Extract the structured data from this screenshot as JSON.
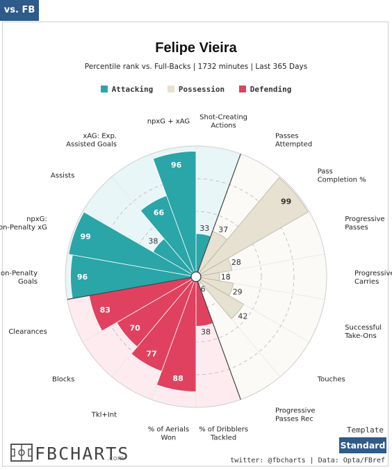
{
  "nav": {
    "tab_label": "vs. FB"
  },
  "header": {
    "title": "Felipe Vieira",
    "subtitle": "Percentile rank vs. Full-Backs | 1732 minutes | Last 365 Days"
  },
  "legend": {
    "items": [
      {
        "label": "Attacking",
        "color": "#2aa5a8"
      },
      {
        "label": "Possession",
        "color": "#e6e1d1"
      },
      {
        "label": "Defending",
        "color": "#e0415f"
      }
    ]
  },
  "chart_data": {
    "type": "polar-bar",
    "range": [
      0,
      100
    ],
    "categories": [
      {
        "label": "Shot-Creating Actions",
        "value": 33,
        "group": "Attacking"
      },
      {
        "label": "Passes Attempted",
        "value": 37,
        "group": "Possession"
      },
      {
        "label": "Pass Completion %",
        "value": 99,
        "group": "Possession"
      },
      {
        "label": "Progressive Passes",
        "value": 28,
        "group": "Possession"
      },
      {
        "label": "Progressive Carries",
        "value": 18,
        "group": "Possession"
      },
      {
        "label": "Successful Take-Ons",
        "value": 29,
        "group": "Possession"
      },
      {
        "label": "Touches",
        "value": 42,
        "group": "Possession"
      },
      {
        "label": "Progressive Passes Rec",
        "value": 6,
        "group": "Possession"
      },
      {
        "label": "% of Dribblers Tackled",
        "value": 38,
        "group": "Defending"
      },
      {
        "label": "% of Aerials Won",
        "value": 88,
        "group": "Defending"
      },
      {
        "label": "Tkl+Int",
        "value": 77,
        "group": "Defending"
      },
      {
        "label": "Blocks",
        "value": 70,
        "group": "Defending"
      },
      {
        "label": "Clearances",
        "value": 83,
        "group": "Defending"
      },
      {
        "label": "Non-Penalty Goals",
        "value": 96,
        "group": "Attacking"
      },
      {
        "label": "npxG: Non-Penalty xG",
        "value": 99,
        "group": "Attacking"
      },
      {
        "label": "Assists",
        "value": 38,
        "group": "Attacking"
      },
      {
        "label": "xAG: Exp. Assisted Goals",
        "value": 66,
        "group": "Attacking"
      },
      {
        "label": "npxG + xAG",
        "value": 96,
        "group": "Attacking"
      }
    ],
    "group_colors": {
      "Attacking": "#2aa5a8",
      "Possession": "#e6e1d1",
      "Defending": "#e0415f"
    },
    "background_colors": {
      "Attacking": "#e9f6f7",
      "Possession": "#fbfaf7",
      "Defending": "#fdebef"
    }
  },
  "footer": {
    "logo_text": "FBCHARTS",
    "logo_suffix": ".com",
    "template_label": "Template",
    "template_button": "Standard",
    "credit": "twitter: @fbcharts | Data: Opta/FBref"
  }
}
